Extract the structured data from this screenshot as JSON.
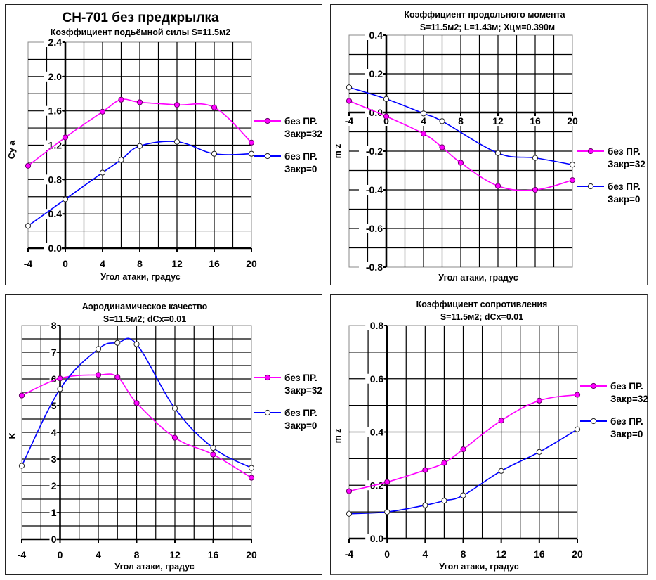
{
  "chart_data": [
    {
      "id": "lift",
      "type": "line",
      "main_title": "CH-701 без предкрылка",
      "title": "Коэффициент подьёмной силы S=11.5м2",
      "subtitle": "",
      "xlabel": "Угол атаки, градус",
      "ylabel": "Cy a",
      "xlim": [
        -4,
        20
      ],
      "ylim": [
        0.0,
        2.4
      ],
      "x_ticks": [
        -4,
        0,
        4,
        8,
        12,
        16,
        20
      ],
      "x_tick_labels": [
        "-4",
        "0",
        "4",
        "8",
        "12",
        "16",
        "20"
      ],
      "y_ticks": [
        0.0,
        0.4,
        0.8,
        1.2,
        1.6,
        2.0,
        2.4
      ],
      "y_tick_labels": [
        "0.0",
        "0.4",
        "0.8",
        "1.2",
        "1.6",
        "2.0",
        "2.4"
      ],
      "x_tick_position": "bottom",
      "grid": true,
      "legend_position": "right",
      "series": [
        {
          "name": "без ПР. Закр=32",
          "legend_line1": "без ПР.",
          "legend_line2": "Закр=32",
          "color": "#ff00ff",
          "marker": "filled",
          "x": [
            -4,
            0,
            4,
            6,
            8,
            12,
            16,
            20
          ],
          "y": [
            0.96,
            1.29,
            1.59,
            1.73,
            1.7,
            1.67,
            1.64,
            1.23
          ]
        },
        {
          "name": "без ПР. Закр=0",
          "legend_line1": "без ПР.",
          "legend_line2": "Закр=0",
          "color": "#0000ff",
          "marker": "hollow",
          "x": [
            -4,
            0,
            4,
            6,
            8,
            12,
            16,
            20
          ],
          "y": [
            0.26,
            0.57,
            0.88,
            1.03,
            1.19,
            1.24,
            1.1,
            1.1
          ]
        }
      ]
    },
    {
      "id": "moment",
      "type": "line",
      "main_title": "",
      "title": "Коэффициент продольного момента",
      "subtitle": "S=11.5м2; L=1.43м; Xцм=0.390м",
      "xlabel": "Угол атаки, градус",
      "ylabel": "m z",
      "xlim": [
        -4,
        20
      ],
      "ylim": [
        -0.8,
        0.4
      ],
      "x_ticks": [
        -4,
        0,
        4,
        8,
        12,
        16,
        20
      ],
      "x_tick_labels": [
        "-4",
        "0",
        "4",
        "8",
        "12",
        "16",
        "20"
      ],
      "y_ticks": [
        -0.8,
        -0.6,
        -0.4,
        -0.2,
        0.0,
        0.2,
        0.4
      ],
      "y_tick_labels": [
        "-0.8",
        "-0.6",
        "-0.4",
        "-0.2",
        "0.0",
        "0.2",
        "0.4"
      ],
      "x_tick_position": "zero",
      "grid": true,
      "legend_position": "right",
      "series": [
        {
          "name": "без ПР. Закр=32",
          "legend_line1": "без ПР.",
          "legend_line2": "Закр=32",
          "color": "#ff00ff",
          "marker": "filled",
          "x": [
            -4,
            0,
            4,
            6,
            8,
            12,
            16,
            20
          ],
          "y": [
            0.06,
            -0.02,
            -0.11,
            -0.18,
            -0.26,
            -0.38,
            -0.4,
            -0.35
          ]
        },
        {
          "name": "без ПР. Закр=0",
          "legend_line1": "без ПР.",
          "legend_line2": "Закр=0",
          "color": "#0000ff",
          "marker": "hollow",
          "x": [
            -4,
            0,
            4,
            6,
            12,
            16,
            20
          ],
          "y": [
            0.13,
            0.07,
            -0.005,
            -0.045,
            -0.21,
            -0.235,
            -0.27
          ]
        }
      ]
    },
    {
      "id": "quality",
      "type": "line",
      "main_title": "",
      "title": "Аэродинамическое качество",
      "subtitle": "S=11.5м2; dCx=0.01",
      "xlabel": "Угол атаки, градус",
      "ylabel": "K",
      "xlim": [
        -4,
        20
      ],
      "ylim": [
        0,
        8
      ],
      "x_ticks": [
        -4,
        0,
        4,
        8,
        12,
        16,
        20
      ],
      "x_tick_labels": [
        "-4",
        "0",
        "4",
        "8",
        "12",
        "16",
        "20"
      ],
      "y_ticks": [
        0,
        1,
        2,
        3,
        4,
        5,
        6,
        7,
        8
      ],
      "y_tick_labels": [
        "0",
        "1",
        "2",
        "3",
        "4",
        "5",
        "6",
        "7",
        "8"
      ],
      "x_tick_position": "bottom",
      "grid": true,
      "legend_position": "right",
      "series": [
        {
          "name": "без ПР. Закр=32",
          "legend_line1": "без ПР.",
          "legend_line2": "Закр=32",
          "color": "#ff00ff",
          "marker": "filled",
          "x": [
            -4,
            0,
            4,
            6,
            8,
            12,
            16,
            20
          ],
          "y": [
            5.38,
            6.02,
            6.15,
            6.07,
            5.1,
            3.8,
            3.17,
            2.3
          ]
        },
        {
          "name": "без ПР. Закр=0",
          "legend_line1": "без ПР.",
          "legend_line2": "Закр=0",
          "color": "#0000ff",
          "marker": "hollow",
          "x": [
            -4,
            0,
            4,
            6,
            8,
            12,
            16,
            20
          ],
          "y": [
            2.75,
            5.62,
            7.12,
            7.35,
            7.3,
            4.9,
            3.42,
            2.67
          ]
        }
      ]
    },
    {
      "id": "drag",
      "type": "line",
      "main_title": "",
      "title": "Коэффициент сопротивления",
      "subtitle": "S=11.5м2; dCx=0.01",
      "xlabel": "Угол атаки, градус",
      "ylabel": "m z",
      "xlim": [
        -4,
        20
      ],
      "ylim": [
        0.0,
        0.8
      ],
      "x_ticks": [
        -4,
        0,
        4,
        8,
        12,
        16,
        20
      ],
      "x_tick_labels": [
        "-4",
        "0",
        "4",
        "8",
        "12",
        "16",
        "20"
      ],
      "y_ticks": [
        0.0,
        0.2,
        0.4,
        0.6,
        0.8
      ],
      "y_tick_labels": [
        "0.0",
        "0.2",
        "0.4",
        "0.6",
        "0.8"
      ],
      "x_tick_position": "bottom",
      "grid": true,
      "legend_position": "right",
      "series": [
        {
          "name": "без ПР. Закр=32",
          "legend_line1": "без ПР.",
          "legend_line2": "Закр=32",
          "color": "#ff00ff",
          "marker": "filled",
          "x": [
            -4,
            0,
            4,
            6,
            8,
            12,
            16,
            20
          ],
          "y": [
            0.178,
            0.212,
            0.257,
            0.284,
            0.335,
            0.443,
            0.518,
            0.54
          ]
        },
        {
          "name": "без ПР. Закр=0",
          "legend_line1": "без ПР.",
          "legend_line2": "Закр=0",
          "color": "#0000ff",
          "marker": "hollow",
          "x": [
            -4,
            0,
            4,
            6,
            8,
            12,
            16,
            20
          ],
          "y": [
            0.093,
            0.1,
            0.125,
            0.142,
            0.162,
            0.254,
            0.325,
            0.41
          ]
        }
      ]
    }
  ]
}
